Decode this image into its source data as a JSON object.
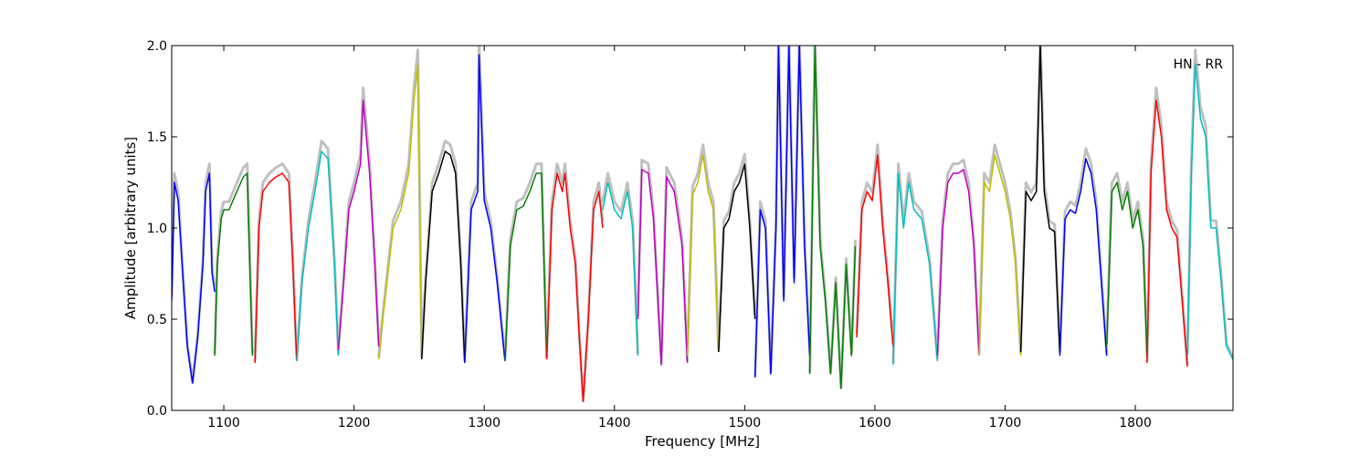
{
  "chart_data": {
    "type": "line",
    "xlabel": "Frequency [MHz]",
    "ylabel": "Amplitude [arbitrary units]",
    "xlim": [
      1060,
      1875
    ],
    "ylim": [
      0.0,
      2.0
    ],
    "x_ticks": [
      1100,
      1200,
      1300,
      1400,
      1500,
      1600,
      1700,
      1800
    ],
    "y_ticks": [
      0.0,
      0.5,
      1.0,
      1.5,
      2.0
    ],
    "x_tick_labels": [
      "1100",
      "1200",
      "1300",
      "1400",
      "1500",
      "1600",
      "1700",
      "1800"
    ],
    "y_tick_labels": [
      "0.0",
      "0.5",
      "1.0",
      "1.5",
      "2.0"
    ],
    "legend": {
      "label": "HN - RR",
      "position": "top-right"
    },
    "grid": false,
    "background_color": "#c0c0c0",
    "segments": [
      {
        "color": "#0000ff",
        "x": [
          1060,
          1062,
          1065,
          1068,
          1072,
          1076,
          1080,
          1084,
          1086,
          1089,
          1091,
          1093
        ],
        "y": [
          0.6,
          1.25,
          1.15,
          0.8,
          0.35,
          0.15,
          0.4,
          0.8,
          1.2,
          1.3,
          0.75,
          0.65
        ]
      },
      {
        "color": "#008000",
        "x": [
          1093,
          1095,
          1098,
          1100,
          1104,
          1110,
          1115,
          1118,
          1120,
          1122
        ],
        "y": [
          0.3,
          0.8,
          1.05,
          1.1,
          1.1,
          1.2,
          1.28,
          1.3,
          0.8,
          0.3
        ]
      },
      {
        "color": "#ff0000",
        "x": [
          1124,
          1127,
          1130,
          1135,
          1140,
          1145,
          1150,
          1153,
          1156
        ],
        "y": [
          0.26,
          1.0,
          1.2,
          1.25,
          1.28,
          1.3,
          1.25,
          0.8,
          0.27
        ]
      },
      {
        "color": "#00bfbf",
        "x": [
          1156,
          1160,
          1165,
          1170,
          1175,
          1180,
          1185,
          1188
        ],
        "y": [
          0.27,
          0.7,
          1.0,
          1.2,
          1.42,
          1.38,
          0.8,
          0.3
        ]
      },
      {
        "color": "#bf00bf",
        "x": [
          1188,
          1192,
          1196,
          1200,
          1205,
          1207,
          1212,
          1216,
          1219
        ],
        "y": [
          0.33,
          0.7,
          1.1,
          1.2,
          1.35,
          1.7,
          1.3,
          0.8,
          0.35
        ]
      },
      {
        "color": "#bfbf00",
        "x": [
          1219,
          1222,
          1226,
          1230,
          1236,
          1242,
          1246,
          1249,
          1252
        ],
        "y": [
          0.28,
          0.5,
          0.75,
          1.0,
          1.1,
          1.3,
          1.7,
          1.9,
          0.3
        ]
      },
      {
        "color": "#000000",
        "x": [
          1252,
          1255,
          1260,
          1265,
          1270,
          1274,
          1278,
          1282,
          1285
        ],
        "y": [
          0.28,
          0.7,
          1.2,
          1.3,
          1.42,
          1.4,
          1.3,
          0.8,
          0.26
        ]
      },
      {
        "color": "#0000ff",
        "x": [
          1285,
          1290,
          1295,
          1296,
          1300,
          1305,
          1310,
          1316
        ],
        "y": [
          0.26,
          1.1,
          1.2,
          1.95,
          1.15,
          1.0,
          0.7,
          0.27
        ]
      },
      {
        "color": "#008000",
        "x": [
          1316,
          1320,
          1325,
          1330,
          1335,
          1340,
          1344,
          1348
        ],
        "y": [
          0.27,
          0.9,
          1.1,
          1.12,
          1.2,
          1.3,
          1.3,
          0.28
        ]
      },
      {
        "color": "#ff0000",
        "x": [
          1348,
          1352,
          1356,
          1360,
          1362,
          1366,
          1370,
          1373,
          1376,
          1380,
          1384,
          1388,
          1391
        ],
        "y": [
          0.28,
          1.1,
          1.3,
          1.2,
          1.3,
          1.0,
          0.8,
          0.4,
          0.05,
          0.5,
          1.1,
          1.2,
          1.0
        ]
      },
      {
        "color": "#00bfbf",
        "x": [
          1391,
          1395,
          1400,
          1405,
          1410,
          1414,
          1418
        ],
        "y": [
          1.1,
          1.25,
          1.1,
          1.05,
          1.2,
          1.0,
          0.3
        ]
      },
      {
        "color": "#bf00bf",
        "x": [
          1418,
          1421,
          1426,
          1430,
          1436,
          1440,
          1446,
          1452,
          1456
        ],
        "y": [
          0.5,
          1.32,
          1.3,
          1.05,
          0.25,
          1.28,
          1.2,
          0.9,
          0.26
        ]
      },
      {
        "color": "#bfbf00",
        "x": [
          1456,
          1460,
          1464,
          1468,
          1472,
          1476,
          1480
        ],
        "y": [
          0.3,
          1.18,
          1.25,
          1.4,
          1.2,
          1.1,
          0.32
        ]
      },
      {
        "color": "#000000",
        "x": [
          1480,
          1484,
          1488,
          1492,
          1496,
          1500,
          1504,
          1508
        ],
        "y": [
          0.32,
          1.0,
          1.05,
          1.2,
          1.25,
          1.35,
          1.0,
          0.5
        ]
      },
      {
        "color": "#0000ff",
        "x": [
          1508,
          1512,
          1516,
          1520,
          1524,
          1526,
          1530,
          1534,
          1538,
          1542,
          1546,
          1550
        ],
        "y": [
          0.18,
          1.1,
          1.0,
          0.2,
          1.0,
          2.0,
          0.6,
          2.0,
          0.7,
          2.0,
          0.9,
          0.3
        ]
      },
      {
        "color": "#008000",
        "x": [
          1550,
          1554,
          1558,
          1562,
          1566,
          1570,
          1574,
          1578,
          1582,
          1585
        ],
        "y": [
          0.2,
          2.0,
          0.9,
          0.6,
          0.2,
          0.7,
          0.12,
          0.8,
          0.3,
          0.9
        ]
      },
      {
        "color": "#ff0000",
        "x": [
          1586,
          1590,
          1594,
          1598,
          1602,
          1606,
          1610,
          1614
        ],
        "y": [
          0.4,
          1.1,
          1.2,
          1.15,
          1.4,
          1.0,
          0.7,
          0.35
        ]
      },
      {
        "color": "#00bfbf",
        "x": [
          1614,
          1618,
          1622,
          1626,
          1630,
          1636,
          1642,
          1648
        ],
        "y": [
          0.25,
          1.3,
          1.0,
          1.25,
          1.1,
          1.05,
          0.8,
          0.27
        ]
      },
      {
        "color": "#bf00bf",
        "x": [
          1648,
          1652,
          1656,
          1660,
          1664,
          1668,
          1672,
          1676,
          1680
        ],
        "y": [
          0.3,
          1.0,
          1.25,
          1.3,
          1.3,
          1.32,
          1.2,
          0.9,
          0.3
        ]
      },
      {
        "color": "#bfbf00",
        "x": [
          1680,
          1684,
          1688,
          1692,
          1696,
          1700,
          1704,
          1708,
          1712
        ],
        "y": [
          0.3,
          1.25,
          1.2,
          1.4,
          1.3,
          1.2,
          1.05,
          0.8,
          0.3
        ]
      },
      {
        "color": "#000000",
        "x": [
          1712,
          1716,
          1720,
          1724,
          1727,
          1730,
          1734,
          1738,
          1742
        ],
        "y": [
          0.32,
          1.2,
          1.15,
          1.2,
          2.0,
          1.2,
          1.0,
          0.98,
          0.32
        ]
      },
      {
        "color": "#0000ff",
        "x": [
          1742,
          1746,
          1750,
          1754,
          1758,
          1762,
          1766,
          1770,
          1775,
          1778
        ],
        "y": [
          0.3,
          1.05,
          1.1,
          1.08,
          1.2,
          1.38,
          1.3,
          1.1,
          0.6,
          0.3
        ]
      },
      {
        "color": "#008000",
        "x": [
          1778,
          1782,
          1786,
          1790,
          1794,
          1798,
          1802,
          1806,
          1809
        ],
        "y": [
          0.35,
          1.2,
          1.25,
          1.1,
          1.2,
          1.0,
          1.1,
          0.9,
          0.3
        ]
      },
      {
        "color": "#ff0000",
        "x": [
          1809,
          1812,
          1816,
          1820,
          1824,
          1828,
          1832,
          1836,
          1840
        ],
        "y": [
          0.26,
          1.3,
          1.7,
          1.5,
          1.1,
          1.0,
          0.95,
          0.6,
          0.24
        ]
      },
      {
        "color": "#00bfbf",
        "x": [
          1840,
          1843,
          1846,
          1850,
          1854,
          1858,
          1862,
          1866,
          1870,
          1875
        ],
        "y": [
          0.3,
          1.3,
          1.9,
          1.6,
          1.5,
          1.0,
          1.0,
          0.7,
          0.35,
          0.28
        ]
      }
    ]
  }
}
